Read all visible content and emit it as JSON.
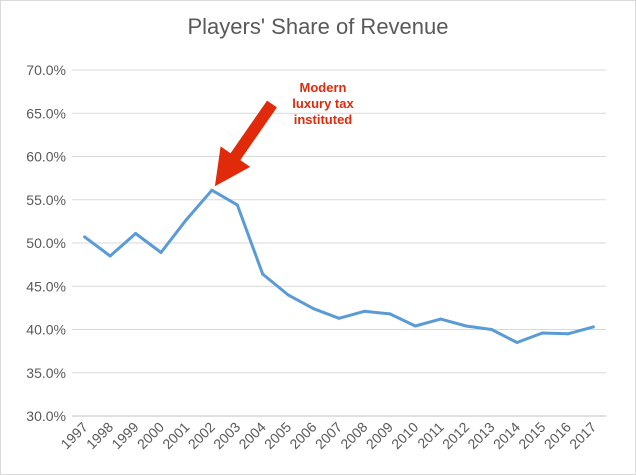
{
  "chart_data": {
    "type": "line",
    "title": "Players' Share of Revenue",
    "xlabel": "",
    "ylabel": "",
    "categories": [
      "1997",
      "1998",
      "1999",
      "2000",
      "2001",
      "2002",
      "2003",
      "2004",
      "2005",
      "2006",
      "2007",
      "2008",
      "2009",
      "2010",
      "2011",
      "2012",
      "2013",
      "2014",
      "2015",
      "2016",
      "2017"
    ],
    "series": [
      {
        "values": [
          50.7,
          48.5,
          51.1,
          48.9,
          52.7,
          56.1,
          54.4,
          46.4,
          44.0,
          42.4,
          41.3,
          42.1,
          41.8,
          40.4,
          41.2,
          40.4,
          40.0,
          38.5,
          39.6,
          39.5,
          40.3
        ],
        "color": "#5b9bd5"
      }
    ],
    "ylim": [
      30,
      70
    ],
    "yticks": [
      "30.0%",
      "35.0%",
      "40.0%",
      "45.0%",
      "50.0%",
      "55.0%",
      "60.0%",
      "65.0%",
      "70.0%"
    ],
    "grid": true,
    "legend": "none",
    "annotations": [
      {
        "lines": [
          "Modern",
          "luxury tax",
          "instituted"
        ],
        "color": "#e02a0a",
        "points_to": "2002"
      }
    ]
  }
}
